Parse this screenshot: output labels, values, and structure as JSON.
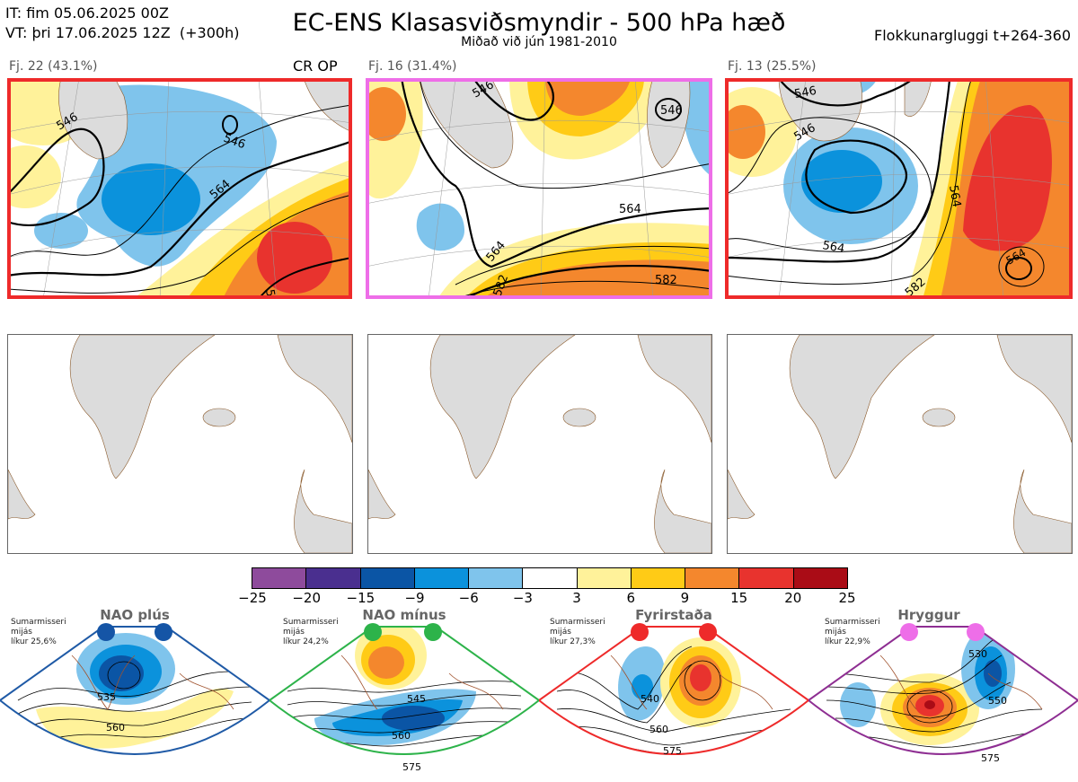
{
  "header": {
    "it_line": "IT: fim 05.06.2025 00Z",
    "vt_line": "VT: þri 17.06.2025 12Z  (+300h)",
    "title": "EC-ENS Klasasviðsmyndir - 500 hPa hæð",
    "subtitle": "Miðað við jún 1981-2010",
    "window": "Flokkunargluggi t+264-360"
  },
  "clusters": [
    {
      "label": "Fj. 22 (43.1%)",
      "extra": "CR OP",
      "border_color": "#ee2a2a",
      "contours": [
        "546",
        "546",
        "564",
        "58"
      ]
    },
    {
      "label": "Fj. 16 (31.4%)",
      "extra": "",
      "border_color": "#ee6ee8",
      "contours": [
        "546",
        "546",
        "564",
        "564",
        "582",
        "582"
      ]
    },
    {
      "label": "Fj. 13 (25.5%)",
      "extra": "",
      "border_color": "#ee2a2a",
      "contours": [
        "546",
        "546",
        "564",
        "564",
        "564",
        "582"
      ]
    }
  ],
  "colorbar": {
    "ticks": [
      "−25",
      "−20",
      "−15",
      "−9",
      "−6",
      "−3",
      "3",
      "6",
      "9",
      "15",
      "20",
      "25"
    ],
    "colors": [
      "#8e4b9c",
      "#4a2f8f",
      "#0b55a5",
      "#0b92dc",
      "#7fc4ec",
      "#ffffff",
      "#fff29a",
      "#ffcb16",
      "#f4872d",
      "#e8332e",
      "#aa0c16"
    ]
  },
  "regimes": [
    {
      "title": "NAO plús",
      "info": [
        "Sumarmisseri",
        "mijás",
        "líkur 25,6%"
      ],
      "dot_color": "#1555a6",
      "frame_color": "#1f5aa6",
      "contours": [
        "535",
        "560"
      ]
    },
    {
      "title": "NAO mínus",
      "info": [
        "Sumarmisseri",
        "mijás",
        "líkur 24,2%"
      ],
      "dot_color": "#2db34a",
      "frame_color": "#2db34a",
      "contours": [
        "545",
        "560",
        "575"
      ]
    },
    {
      "title": "Fyrirstaða",
      "info": [
        "Sumarmisseri",
        "mijás",
        "líkur 27,3%"
      ],
      "dot_color": "#ee2a2a",
      "frame_color": "#ee2a2a",
      "contours": [
        "540",
        "560",
        "575"
      ]
    },
    {
      "title": "Hryggur",
      "info": [
        "Sumarmisseri",
        "mijás",
        "líkur 22,9%"
      ],
      "dot_color": "#ee6ee8",
      "frame_color": "#8e2e92",
      "contours": [
        "530",
        "550",
        "575"
      ]
    }
  ]
}
